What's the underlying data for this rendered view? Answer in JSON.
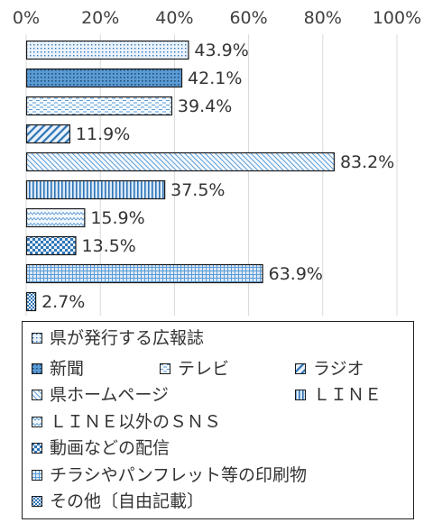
{
  "chart_data": {
    "type": "bar",
    "orientation": "horizontal",
    "title": "",
    "xlabel": "",
    "ylabel": "",
    "xlim": [
      0,
      100
    ],
    "x_ticks": [
      "0%",
      "20%",
      "40%",
      "60%",
      "80%",
      "100%"
    ],
    "grid": true,
    "legend_position": "bottom",
    "categories": [
      "県が発行する広報誌",
      "新聞",
      "テレビ",
      "ラジオ",
      "県ホームページ",
      "ＬＩＮＥ",
      "ＬＩＮＥ以外のＳＮＳ",
      "動画などの配信",
      "チラシやパンフレット等の印刷物",
      "その他〔自由記載〕"
    ],
    "values": [
      43.9,
      42.1,
      39.4,
      11.9,
      83.2,
      37.5,
      15.9,
      13.5,
      63.9,
      2.7
    ],
    "value_labels": [
      "43.9%",
      "42.1%",
      "39.4%",
      "11.9%",
      "83.2%",
      "37.5%",
      "15.9%",
      "13.5%",
      "63.9%",
      "2.7%"
    ],
    "patterns": [
      "dots",
      "solid-dots",
      "dashes",
      "diag-bold",
      "diag-fine",
      "vertical",
      "wave",
      "checker",
      "grid",
      "checker-small"
    ],
    "colors": {
      "bar_fill": "#dbe9f8",
      "pattern": "#2e75b6",
      "outline": "#1a1a1a",
      "grid": "#d9d9d9"
    }
  }
}
